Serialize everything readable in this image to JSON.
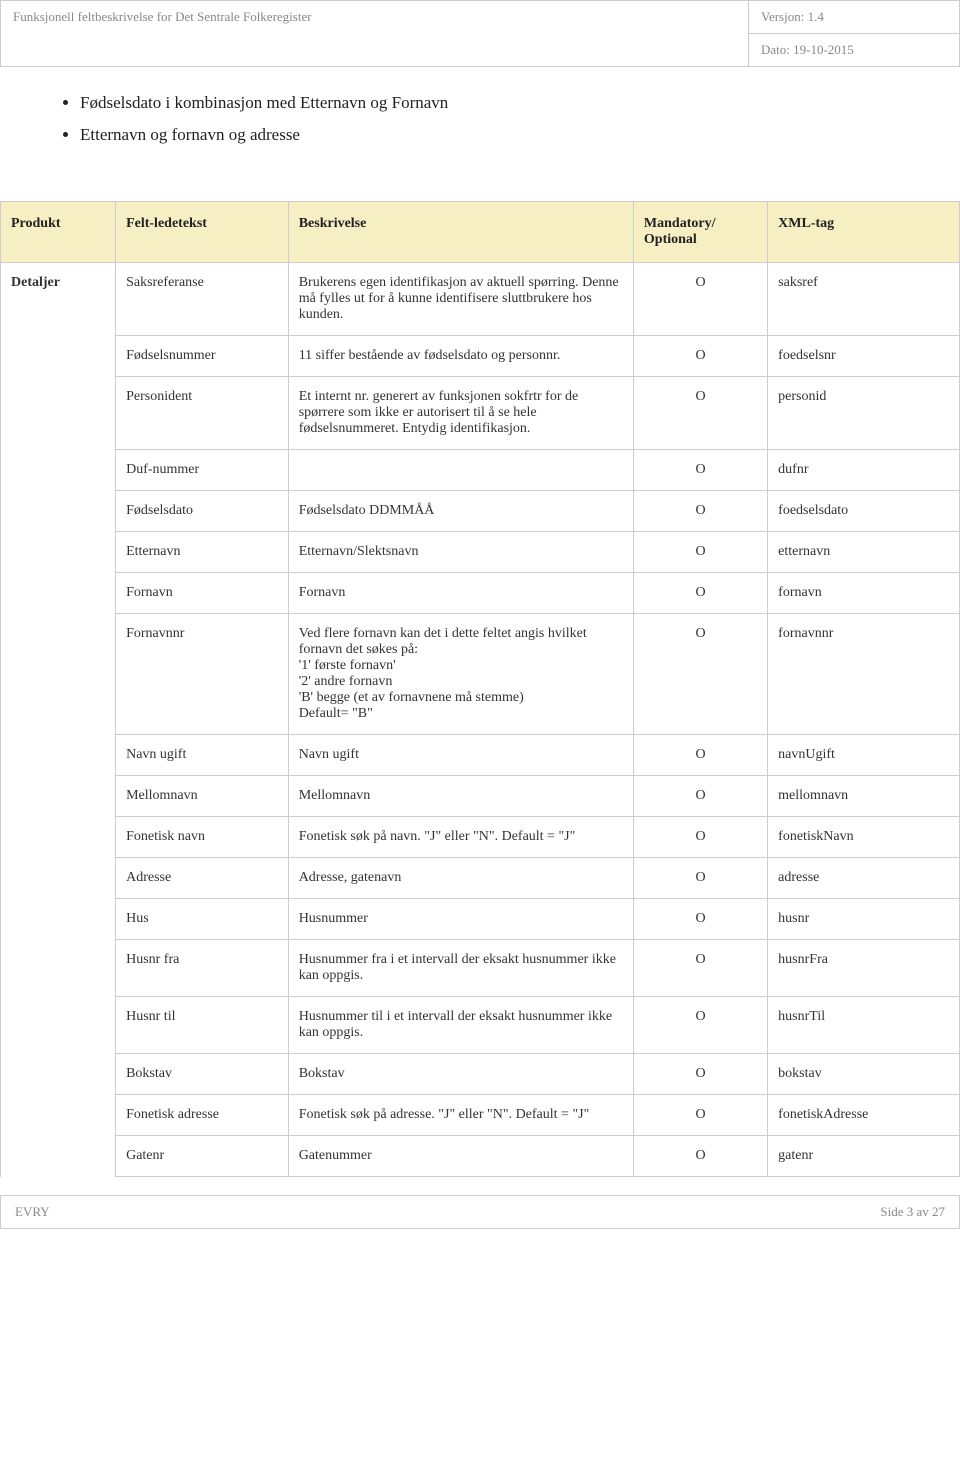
{
  "header": {
    "title": "Funksjonell feltbeskrivelse for Det Sentrale Folkeregister",
    "version_label": "Versjon: 1.4",
    "date_label": "Dato: 19-10-2015"
  },
  "bullets": [
    "Fødselsdato i kombinasjon med Etternavn og Fornavn",
    "Etternavn og fornavn og adresse"
  ],
  "table": {
    "headers": {
      "produkt": "Produkt",
      "felt": "Felt-ledetekst",
      "beskrivelse": "Beskrivelse",
      "mandatory": "Mandatory/ Optional",
      "xml": "XML-tag"
    },
    "produkt_label": "Detaljer",
    "rows": [
      {
        "felt": "Saksreferanse",
        "besk": "Brukerens egen identifikasjon av aktuell spørring. Denne må fylles ut for å kunne identifisere sluttbrukere hos kunden.",
        "mand": "O",
        "xml": "saksref"
      },
      {
        "felt": "Fødselsnummer",
        "besk": "11 siffer bestående av fødselsdato og personnr.",
        "mand": "O",
        "xml": "foedselsnr"
      },
      {
        "felt": "Personident",
        "besk": "Et internt nr. generert av funksjonen sokfrtr for de spørrere som ikke er autorisert til å se hele fødselsnummeret. Entydig identifikasjon.",
        "mand": "O",
        "xml": "personid"
      },
      {
        "felt": "Duf-nummer",
        "besk": "",
        "mand": "O",
        "xml": "dufnr"
      },
      {
        "felt": "Fødselsdato",
        "besk": "Fødselsdato DDMMÅÅ",
        "mand": "O",
        "xml": "foedselsdato"
      },
      {
        "felt": "Etternavn",
        "besk": "Etternavn/Slektsnavn",
        "mand": "O",
        "xml": "etternavn"
      },
      {
        "felt": "Fornavn",
        "besk": "Fornavn",
        "mand": "O",
        "xml": "fornavn"
      },
      {
        "felt": "Fornavnnr",
        "besk": "Ved flere fornavn kan det i dette feltet angis hvilket fornavn det søkes på:\n'1' første fornavn'\n'2' andre fornavn\n'B' begge (et av fornavnene må stemme)\nDefault= \"B\"",
        "mand": "O",
        "xml": "fornavnnr"
      },
      {
        "felt": "Navn ugift",
        "besk": "Navn ugift",
        "mand": "O",
        "xml": "navnUgift"
      },
      {
        "felt": "Mellomnavn",
        "besk": "Mellomnavn",
        "mand": "O",
        "xml": "mellomnavn"
      },
      {
        "felt": "Fonetisk navn",
        "besk": "Fonetisk søk på navn. \"J\" eller \"N\". Default = \"J\"",
        "mand": "O",
        "xml": "fonetiskNavn"
      },
      {
        "felt": "Adresse",
        "besk": "Adresse, gatenavn",
        "mand": "O",
        "xml": "adresse"
      },
      {
        "felt": "Hus",
        "besk": "Husnummer",
        "mand": "O",
        "xml": "husnr"
      },
      {
        "felt": "Husnr fra",
        "besk": "Husnummer fra i et intervall der eksakt husnummer ikke kan oppgis.",
        "mand": "O",
        "xml": "husnrFra"
      },
      {
        "felt": "Husnr til",
        "besk": "Husnummer til i et intervall der eksakt husnummer ikke kan oppgis.",
        "mand": "O",
        "xml": "husnrTil"
      },
      {
        "felt": "Bokstav",
        "besk": "Bokstav",
        "mand": "O",
        "xml": "bokstav"
      },
      {
        "felt": "Fonetisk adresse",
        "besk": "Fonetisk søk på adresse. \"J\" eller \"N\". Default = \"J\"",
        "mand": "O",
        "xml": "fonetiskAdresse"
      },
      {
        "felt": "Gatenr",
        "besk": "Gatenummer",
        "mand": "O",
        "xml": "gatenr"
      }
    ]
  },
  "footer": {
    "left": "EVRY",
    "right": "Side 3 av 27"
  },
  "style": {
    "header_bg": "#f6efc4",
    "border_color": "#cccccc",
    "muted_text": "#888888",
    "body_text": "#333333"
  }
}
